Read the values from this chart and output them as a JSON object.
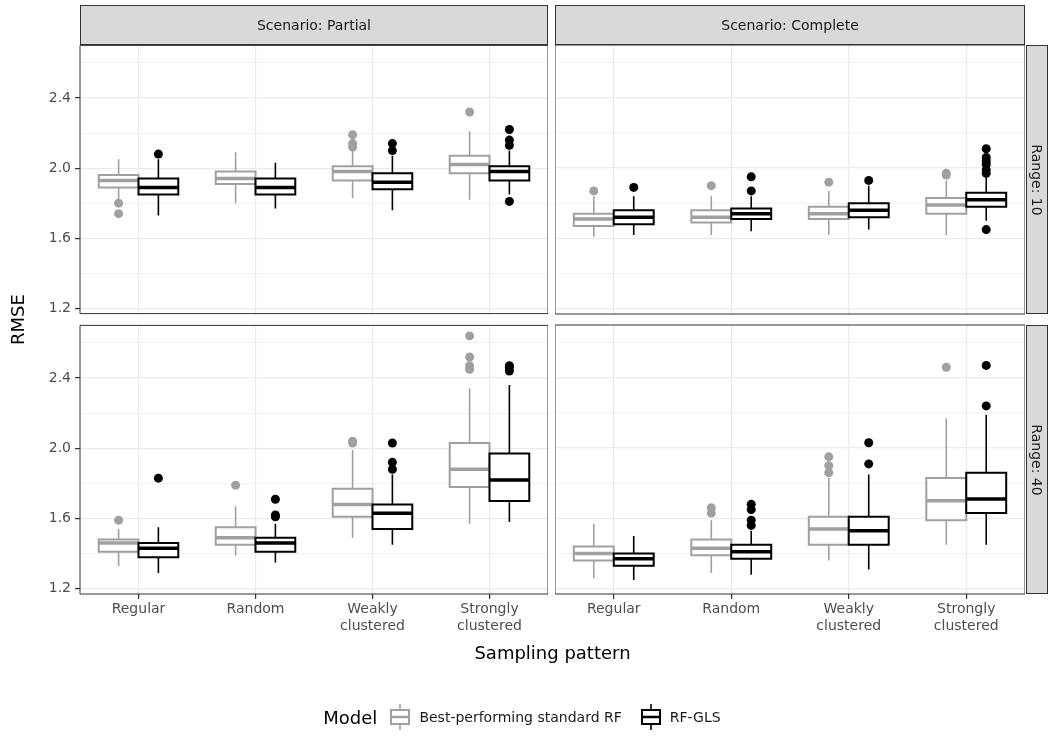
{
  "chart_data": [
    {
      "type": "box",
      "title": "Scenario: Partial",
      "ylabel": "RMSE",
      "legend": "bottom",
      "legend_title": "Model",
      "categories": [
        "Regular",
        "Random",
        "Weakly\nclustered",
        "Strongly\nclustered"
      ],
      "ylim": [
        1.17,
        2.7
      ],
      "yticks": [
        {
          "value": 1.2,
          "label": "1.2"
        },
        {
          "value": 1.4,
          "label": null
        },
        {
          "value": 1.6,
          "label": "1.6"
        },
        {
          "value": 1.8,
          "label": null
        },
        {
          "value": 2.0,
          "label": "2.0"
        },
        {
          "value": 2.2,
          "label": null
        },
        {
          "value": 2.4,
          "label": "2.4"
        },
        {
          "value": 2.6,
          "label": null
        }
      ],
      "grid": true,
      "tick_labels": "y",
      "series": [
        {
          "name": "Best-performing standard RF",
          "color": "#a0a0a0",
          "boxes": [
            {
              "low": 1.82,
              "q1": 1.89,
              "median": 1.93,
              "q3": 1.96,
              "high": 2.05,
              "outliers": [
                1.8,
                1.74
              ]
            },
            {
              "low": 1.8,
              "q1": 1.91,
              "median": 1.94,
              "q3": 1.98,
              "high": 2.09
            },
            {
              "low": 1.83,
              "q1": 1.93,
              "median": 1.98,
              "q3": 2.01,
              "high": 2.1,
              "outliers": [
                2.19,
                2.14,
                2.12
              ]
            },
            {
              "low": 1.82,
              "q1": 1.97,
              "median": 2.02,
              "q3": 2.07,
              "high": 2.21,
              "outliers": [
                2.32
              ]
            }
          ]
        },
        {
          "name": "RF-GLS",
          "color": "#000000",
          "boxes": [
            {
              "low": 1.73,
              "q1": 1.85,
              "median": 1.89,
              "q3": 1.94,
              "high": 2.05,
              "outliers": [
                2.08
              ]
            },
            {
              "low": 1.77,
              "q1": 1.85,
              "median": 1.89,
              "q3": 1.94,
              "high": 2.03
            },
            {
              "low": 1.76,
              "q1": 1.88,
              "median": 1.92,
              "q3": 1.97,
              "high": 2.07,
              "outliers": [
                2.14,
                2.1
              ]
            },
            {
              "low": 1.85,
              "q1": 1.93,
              "median": 1.98,
              "q3": 2.01,
              "high": 2.1,
              "outliers": [
                2.22,
                2.16,
                2.13,
                1.81
              ]
            }
          ]
        }
      ]
    },
    {
      "type": "box",
      "title": "Scenario: Complete",
      "annotations": [
        "Range: 10"
      ],
      "categories": [
        "Regular",
        "Random",
        "Weakly\nclustered",
        "Strongly\nclustered"
      ],
      "ylim": [
        1.17,
        2.7
      ],
      "yticks": [
        {
          "value": 1.2,
          "label": "1.2"
        },
        {
          "value": 1.4,
          "label": null
        },
        {
          "value": 1.6,
          "label": "1.6"
        },
        {
          "value": 1.8,
          "label": null
        },
        {
          "value": 2.0,
          "label": "2.0"
        },
        {
          "value": 2.2,
          "label": null
        },
        {
          "value": 2.4,
          "label": "2.4"
        },
        {
          "value": 2.6,
          "label": null
        }
      ],
      "grid": true,
      "tick_labels": false,
      "series": [
        {
          "name": "Best-performing standard RF",
          "color": "#a0a0a0",
          "boxes": [
            {
              "low": 1.61,
              "q1": 1.67,
              "median": 1.71,
              "q3": 1.74,
              "high": 1.84,
              "outliers": [
                1.87
              ]
            },
            {
              "low": 1.62,
              "q1": 1.69,
              "median": 1.72,
              "q3": 1.76,
              "high": 1.84,
              "outliers": [
                1.9
              ]
            },
            {
              "low": 1.62,
              "q1": 1.71,
              "median": 1.74,
              "q3": 1.78,
              "high": 1.87,
              "outliers": [
                1.92
              ]
            },
            {
              "low": 1.62,
              "q1": 1.74,
              "median": 1.79,
              "q3": 1.83,
              "high": 1.93,
              "outliers": [
                1.97,
                1.96
              ]
            }
          ]
        },
        {
          "name": "RF-GLS",
          "color": "#000000",
          "boxes": [
            {
              "low": 1.62,
              "q1": 1.68,
              "median": 1.72,
              "q3": 1.76,
              "high": 1.84,
              "outliers": [
                1.89
              ]
            },
            {
              "low": 1.64,
              "q1": 1.71,
              "median": 1.74,
              "q3": 1.77,
              "high": 1.84,
              "outliers": [
                1.95,
                1.87
              ]
            },
            {
              "low": 1.65,
              "q1": 1.72,
              "median": 1.76,
              "q3": 1.8,
              "high": 1.9,
              "outliers": [
                1.93
              ]
            },
            {
              "low": 1.7,
              "q1": 1.78,
              "median": 1.82,
              "q3": 1.86,
              "high": 1.95,
              "outliers": [
                2.11,
                2.06,
                2.04,
                2.02,
                1.99,
                1.97,
                1.65
              ]
            }
          ]
        }
      ]
    },
    {
      "type": "box",
      "xlabel": "Sampling pattern",
      "categories": [
        "Regular",
        "Random",
        "Weakly\nclustered",
        "Strongly\nclustered"
      ],
      "ylim": [
        1.17,
        2.7
      ],
      "yticks": [
        {
          "value": 1.2,
          "label": "1.2"
        },
        {
          "value": 1.4,
          "label": null
        },
        {
          "value": 1.6,
          "label": "1.6"
        },
        {
          "value": 1.8,
          "label": null
        },
        {
          "value": 2.0,
          "label": "2.0"
        },
        {
          "value": 2.2,
          "label": null
        },
        {
          "value": 2.4,
          "label": "2.4"
        },
        {
          "value": 2.6,
          "label": null
        }
      ],
      "grid": true,
      "series": [
        {
          "name": "Best-performing standard RF",
          "color": "#a0a0a0",
          "boxes": [
            {
              "low": 1.33,
              "q1": 1.41,
              "median": 1.46,
              "q3": 1.48,
              "high": 1.54,
              "outliers": [
                1.59
              ]
            },
            {
              "low": 1.39,
              "q1": 1.45,
              "median": 1.49,
              "q3": 1.55,
              "high": 1.67,
              "outliers": [
                1.79
              ]
            },
            {
              "low": 1.49,
              "q1": 1.61,
              "median": 1.68,
              "q3": 1.77,
              "high": 1.99,
              "outliers": [
                2.04,
                2.03
              ]
            },
            {
              "low": 1.57,
              "q1": 1.78,
              "median": 1.88,
              "q3": 2.03,
              "high": 2.34,
              "outliers": [
                2.64,
                2.52,
                2.47,
                2.45
              ]
            }
          ]
        },
        {
          "name": "RF-GLS",
          "color": "#000000",
          "boxes": [
            {
              "low": 1.29,
              "q1": 1.38,
              "median": 1.43,
              "q3": 1.46,
              "high": 1.55,
              "outliers": [
                1.83
              ]
            },
            {
              "low": 1.35,
              "q1": 1.41,
              "median": 1.46,
              "q3": 1.49,
              "high": 1.57,
              "outliers": [
                1.71,
                1.62,
                1.61
              ]
            },
            {
              "low": 1.45,
              "q1": 1.54,
              "median": 1.63,
              "q3": 1.68,
              "high": 1.85,
              "outliers": [
                2.03,
                1.92,
                1.88
              ]
            },
            {
              "low": 1.58,
              "q1": 1.7,
              "median": 1.82,
              "q3": 1.97,
              "high": 2.36,
              "outliers": [
                2.47,
                2.46,
                2.44
              ]
            }
          ]
        }
      ]
    },
    {
      "type": "box",
      "annotations": [
        "Range: 40"
      ],
      "categories": [
        "Regular",
        "Random",
        "Weakly\nclustered",
        "Strongly\nclustered"
      ],
      "ylim": [
        1.17,
        2.7
      ],
      "yticks": [
        {
          "value": 1.2,
          "label": "1.2"
        },
        {
          "value": 1.4,
          "label": null
        },
        {
          "value": 1.6,
          "label": "1.6"
        },
        {
          "value": 1.8,
          "label": null
        },
        {
          "value": 2.0,
          "label": "2.0"
        },
        {
          "value": 2.2,
          "label": null
        },
        {
          "value": 2.4,
          "label": "2.4"
        },
        {
          "value": 2.6,
          "label": null
        }
      ],
      "grid": true,
      "tick_labels": "x",
      "series": [
        {
          "name": "Best-performing standard RF",
          "color": "#a0a0a0",
          "boxes": [
            {
              "low": 1.26,
              "q1": 1.36,
              "median": 1.4,
              "q3": 1.44,
              "high": 1.57
            },
            {
              "low": 1.29,
              "q1": 1.39,
              "median": 1.43,
              "q3": 1.48,
              "high": 1.59,
              "outliers": [
                1.66,
                1.63
              ]
            },
            {
              "low": 1.36,
              "q1": 1.45,
              "median": 1.54,
              "q3": 1.61,
              "high": 1.83,
              "outliers": [
                1.95,
                1.9,
                1.86
              ]
            },
            {
              "low": 1.45,
              "q1": 1.59,
              "median": 1.7,
              "q3": 1.83,
              "high": 2.17,
              "outliers": [
                2.46
              ]
            }
          ]
        },
        {
          "name": "RF-GLS",
          "color": "#000000",
          "boxes": [
            {
              "low": 1.25,
              "q1": 1.33,
              "median": 1.37,
              "q3": 1.4,
              "high": 1.5
            },
            {
              "low": 1.28,
              "q1": 1.37,
              "median": 1.41,
              "q3": 1.45,
              "high": 1.53,
              "outliers": [
                1.68,
                1.65,
                1.59,
                1.56
              ]
            },
            {
              "low": 1.31,
              "q1": 1.45,
              "median": 1.53,
              "q3": 1.61,
              "high": 1.85,
              "outliers": [
                2.03,
                1.91
              ]
            },
            {
              "low": 1.45,
              "q1": 1.63,
              "median": 1.71,
              "q3": 1.86,
              "high": 2.19,
              "outliers": [
                2.47,
                2.24
              ]
            }
          ]
        }
      ]
    }
  ]
}
